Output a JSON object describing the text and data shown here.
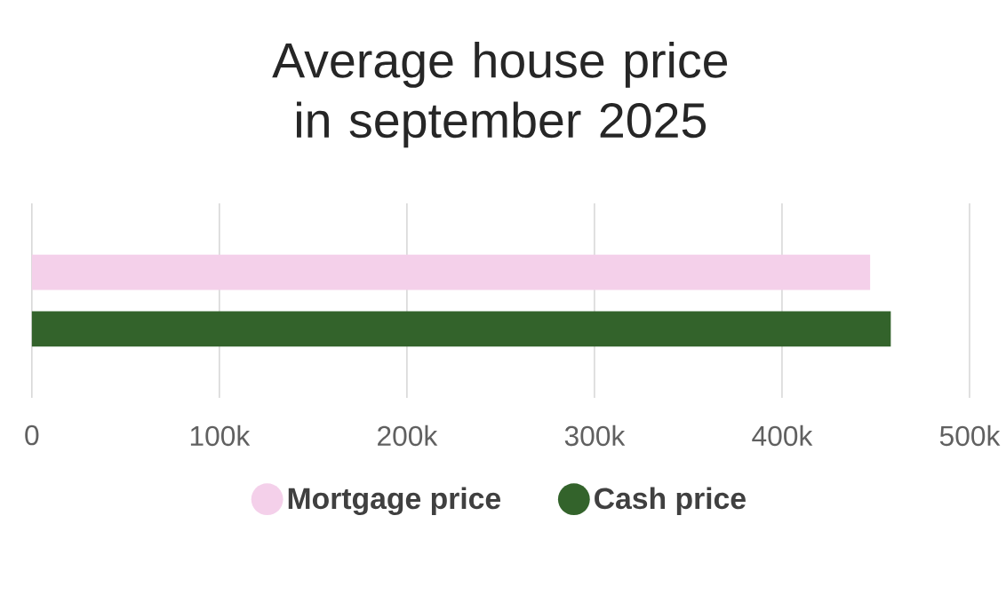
{
  "chart_data": {
    "type": "bar",
    "orientation": "horizontal",
    "title": "Average house price in september 2025",
    "categories": [
      null
    ],
    "series": [
      {
        "name": "Mortgage price",
        "color": "#f4d0ea",
        "values": [
          447000
        ]
      },
      {
        "name": "Cash price",
        "color": "#33632b",
        "values": [
          458000
        ]
      }
    ],
    "xlim": [
      0,
      500000
    ],
    "xticks": [
      0,
      {
        "value": 100000,
        "label": "100k"
      },
      {
        "value": 200000,
        "label": "200k"
      },
      {
        "value": 300000,
        "label": "300k"
      },
      {
        "value": 400000,
        "label": "400k"
      },
      {
        "value": 500000,
        "label": "500k"
      }
    ],
    "grid": "x",
    "legend": "bottom",
    "tick_labels": "x"
  }
}
